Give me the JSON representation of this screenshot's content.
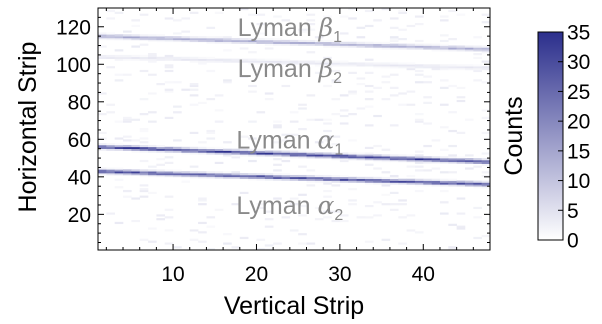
{
  "chart_data": {
    "type": "heatmap",
    "xlabel": "Vertical Strip",
    "ylabel": "Horizontal Strip",
    "xlim": [
      1,
      48
    ],
    "ylim": [
      1,
      130
    ],
    "xticks": [
      10,
      20,
      30,
      40
    ],
    "yticks": [
      20,
      40,
      60,
      80,
      100,
      120
    ],
    "colorbar": {
      "label": "Counts",
      "min": 0,
      "max": 35,
      "ticks": [
        0,
        5,
        10,
        15,
        20,
        25,
        30,
        35
      ],
      "color_low": "#ffffff",
      "color_high": "#2b2e8c"
    },
    "bands": [
      {
        "name": "Lyman α1",
        "y_at_x1": 56,
        "y_at_x48": 48,
        "peak_counts": 33
      },
      {
        "name": "Lyman α2",
        "y_at_x1": 43,
        "y_at_x48": 36,
        "peak_counts": 30
      },
      {
        "name": "Lyman β1",
        "y_at_x1": 115,
        "y_at_x48": 108,
        "peak_counts": 14
      },
      {
        "name": "Lyman β2",
        "y_at_x1": 104,
        "y_at_x48": 98,
        "peak_counts": 4
      }
    ],
    "annotations": [
      {
        "base": "Lyman ",
        "greek": "β",
        "sub": "1",
        "x": 24,
        "y": 120
      },
      {
        "base": "Lyman ",
        "greek": "β",
        "sub": "2",
        "x": 24,
        "y": 98
      },
      {
        "base": "Lyman ",
        "greek": "α",
        "sub": "1",
        "x": 24,
        "y": 60
      },
      {
        "base": "Lyman ",
        "greek": "α",
        "sub": "2",
        "x": 24,
        "y": 25
      }
    ]
  }
}
